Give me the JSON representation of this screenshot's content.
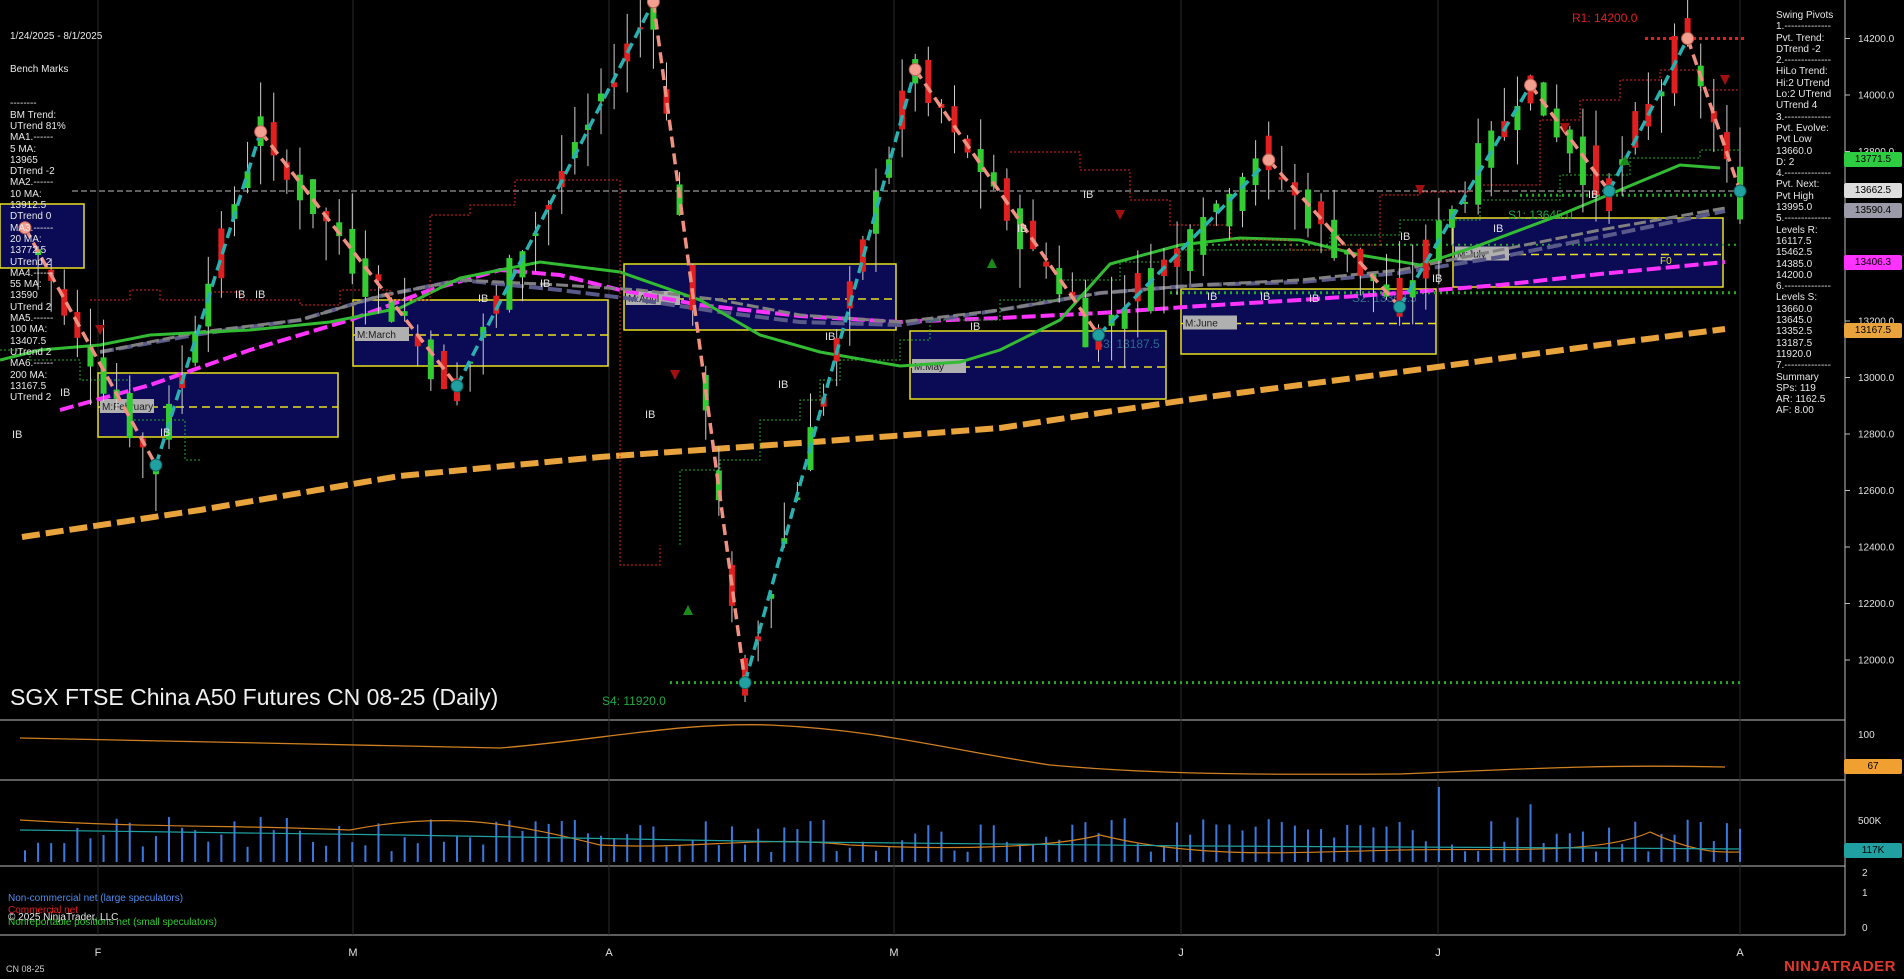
{
  "header": {
    "date_range": "1/24/2025 - 8/1/2025",
    "bench_marks_title": "Bench Marks"
  },
  "bench_marks": [
    "--------",
    "BM Trend:",
    "UTrend 81%",
    "MA1.------",
    "5 MA:",
    "13965",
    "DTrend -2",
    "MA2.------",
    "10 MA:",
    "13912.5",
    "DTrend 0",
    "MA3.------",
    "20 MA:",
    "13772.5",
    "UTrend 2",
    "MA4.------",
    "55 MA:",
    "13590",
    "UTrend 2",
    "MA5.------",
    "100 MA:",
    "13407.5",
    "UTrend 2",
    "MA6.------",
    "200 MA:",
    "13167.5",
    "UTrend 2"
  ],
  "swing_pivots": [
    "Swing Pivots",
    "1.--------------",
    "Pvt. Trend:",
    "DTrend -2",
    "2.--------------",
    "HiLo Trend:",
    "Hi:2 UTrend",
    "Lo:2 UTrend",
    "UTrend 4",
    "3.--------------",
    "Pvt. Evolve:",
    "Pvt Low",
    "13660.0",
    "D: 2",
    "4.--------------",
    "Pvt. Next:",
    "Pvt High",
    "13995.0",
    "5.--------------",
    "Levels R:",
    "16117.5",
    "15462.5",
    "14385.0",
    "14200.0",
    "6.--------------",
    "Levels S:",
    "13660.0",
    "13645.0",
    "13352.5",
    "13187.5",
    "11920.0",
    "7.--------------",
    "Summary",
    "SPs: 119",
    "AR: 1162.5",
    "AF: 8.00"
  ],
  "title": "SGX FTSE China A50 Futures CN 08-25 (Daily)",
  "level_labels": {
    "r1": "R1: 14200.0",
    "s1": "S1: 13645.0",
    "s2": "S2: 13352.5",
    "s3": "S3: 13187.5",
    "s4": "S4: 11920.0",
    "f0": "F0"
  },
  "month_boxes": [
    "M:February",
    "M:March",
    "M:April",
    "M:May",
    "M:June",
    "M:July"
  ],
  "ib_label": "IB",
  "price_tags": [
    {
      "value": "13771.5",
      "price": 13771.5,
      "color": "#2ecc40"
    },
    {
      "value": "13662.5",
      "price": 13662.5,
      "color": "#dddddd"
    },
    {
      "value": "13590.4",
      "price": 13590.4,
      "color": "#9a9aa8"
    },
    {
      "value": "13406.3",
      "price": 13406.3,
      "color": "#ff33ff"
    },
    {
      "value": "13167.5",
      "price": 13167.5,
      "color": "#e8a33c"
    }
  ],
  "osc_tag": {
    "value": "67",
    "color": "#f0a030"
  },
  "vol_tag": {
    "value": "117K",
    "color": "#20a0a0"
  },
  "footer": {
    "legend_noncommercial": "Non-commercial net (large speculators)",
    "legend_commercial": "Commercial net",
    "legend_small": "Nonreportable positions net (small speculators)",
    "copyright": "© 2025 NinjaTrader, LLC",
    "symbol": "CN 08-25",
    "brand": "NINJATRADER"
  },
  "colors": {
    "up": "#33cc33",
    "down": "#e02020",
    "swing_up": "#2ab0b0",
    "swing_down": "#f09080",
    "ma_green": "#33bb33",
    "ma_magenta": "#ff33ff",
    "ma_gray": "#808080",
    "ma_navy": "#5a5a8a",
    "ma_orange": "#e8a33c",
    "box_fill": "#0a0a55",
    "box_border": "#e8e020"
  },
  "chart_data": {
    "type": "candlestick",
    "title": "SGX FTSE China A50 Futures CN 08-25 (Daily)",
    "x_ticks": [
      "F",
      "M",
      "A",
      "M",
      "J",
      "J",
      "A"
    ],
    "y_ticks": [
      12000,
      12200,
      12400,
      12600,
      12800,
      13000,
      13200,
      13400,
      13600,
      13800,
      14000,
      14200
    ],
    "ylim": [
      11820,
      14310
    ],
    "swing_pivots": [
      {
        "type": "high",
        "value": 13530
      },
      {
        "type": "low",
        "value": 12690
      },
      {
        "type": "high",
        "value": 13870
      },
      {
        "type": "low",
        "value": 12970
      },
      {
        "type": "high",
        "value": 14330
      },
      {
        "type": "low",
        "value": 11920
      },
      {
        "type": "high",
        "value": 14090
      },
      {
        "type": "low",
        "value": 13150
      },
      {
        "type": "high",
        "value": 13770
      },
      {
        "type": "low",
        "value": 13250
      },
      {
        "type": "high",
        "value": 14035
      },
      {
        "type": "low",
        "value": 13660
      },
      {
        "type": "high",
        "value": 14200
      },
      {
        "type": "low",
        "value": 13660
      }
    ],
    "levels": {
      "R1": 14200.0,
      "S1": 13645.0,
      "S2": 13352.5,
      "S3": 13187.5,
      "S4": 11920.0
    },
    "moving_averages": [
      {
        "name": "5 MA",
        "value": 13965
      },
      {
        "name": "10 MA",
        "value": 13912.5
      },
      {
        "name": "20 MA",
        "value": 13772.5
      },
      {
        "name": "55 MA",
        "value": 13590
      },
      {
        "name": "100 MA",
        "value": 13407.5
      },
      {
        "name": "200 MA",
        "value": 13167.5
      }
    ],
    "oscillator_ticks": [
      100
    ],
    "volume_ticks": [
      "500K"
    ],
    "cot_ticks": [
      2,
      1,
      0
    ]
  }
}
